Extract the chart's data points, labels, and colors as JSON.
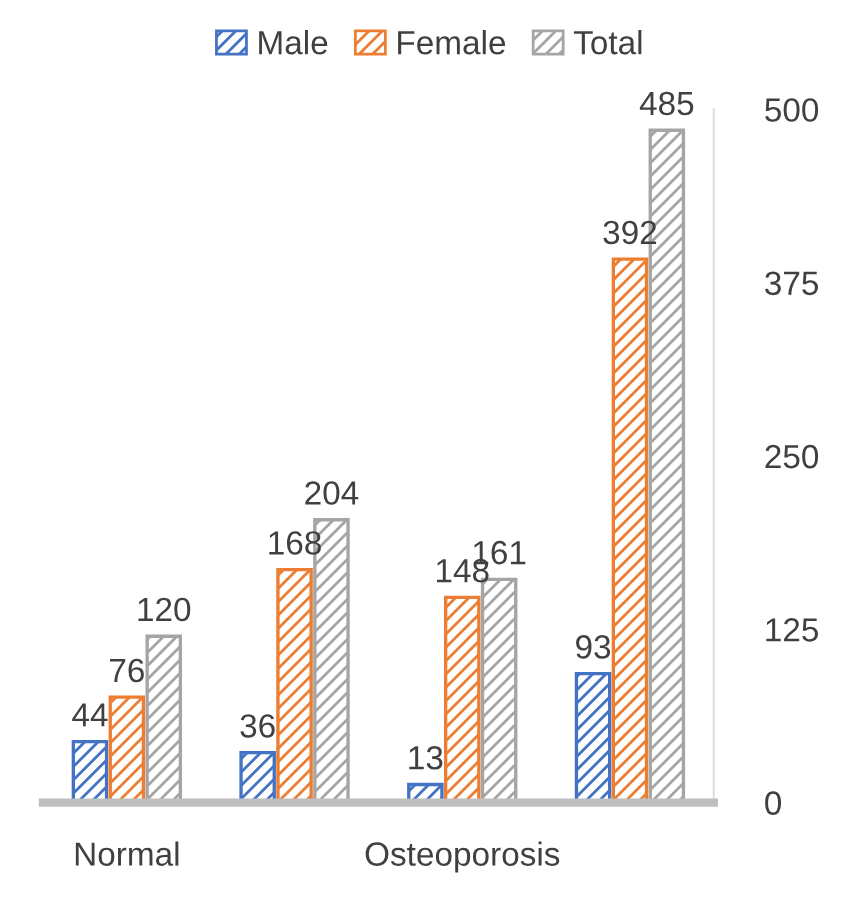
{
  "chart_data": {
    "type": "bar",
    "categories": [
      "Normal",
      null,
      "Osteoporosis",
      null
    ],
    "series": [
      {
        "name": "Male",
        "color": "#4472c4",
        "values": [
          44,
          36,
          13,
          93
        ]
      },
      {
        "name": "Female",
        "color": "#ed7d31",
        "values": [
          76,
          168,
          148,
          392
        ]
      },
      {
        "name": "Total",
        "color": "#a5a5a5",
        "values": [
          120,
          204,
          161,
          485
        ]
      }
    ],
    "ylim": [
      0,
      500
    ],
    "yticks": [
      0,
      125,
      250,
      375,
      500
    ],
    "data_labels": true,
    "legend": "top",
    "grid": false
  }
}
